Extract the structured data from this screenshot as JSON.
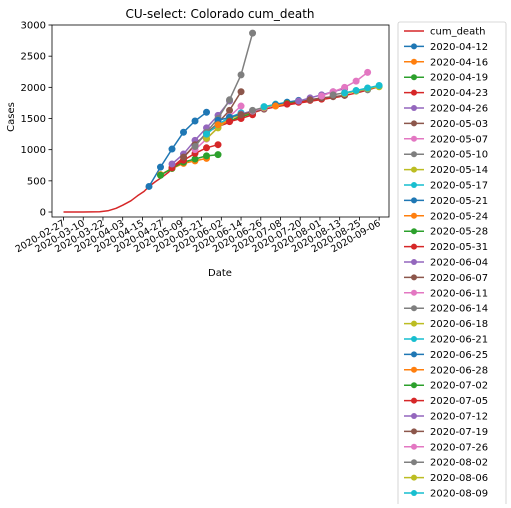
{
  "chart_data": {
    "type": "line",
    "title": "CU-select: Colorado cum_death",
    "xlabel": "Date",
    "ylabel": "Cases",
    "ylim": [
      -80,
      3000
    ],
    "yticks": [
      0,
      500,
      1000,
      1500,
      2000,
      2500,
      3000
    ],
    "x_dates": [
      "2020-02-27",
      "2020-03-10",
      "2020-03-22",
      "2020-04-03",
      "2020-04-15",
      "2020-04-27",
      "2020-05-09",
      "2020-05-21",
      "2020-06-02",
      "2020-06-14",
      "2020-06-26",
      "2020-07-08",
      "2020-07-20",
      "2020-08-01",
      "2020-08-13",
      "2020-08-25",
      "2020-09-06"
    ],
    "xlim": [
      "2020-02-20",
      "2020-09-12"
    ],
    "grid": false,
    "legend_placement": "outside-right",
    "colors": [
      "#d62728",
      "#1f77b4",
      "#ff7f0e",
      "#2ca02c",
      "#d62728",
      "#9467bd",
      "#8c564b",
      "#e377c2",
      "#7f7f7f",
      "#bcbd22",
      "#17becf"
    ],
    "series": [
      {
        "name": "cum_death",
        "color": "#d62728",
        "marker": false,
        "x": [
          "2020-02-27",
          "2020-03-10",
          "2020-03-15",
          "2020-03-20",
          "2020-03-25",
          "2020-03-30",
          "2020-04-03",
          "2020-04-08",
          "2020-04-12",
          "2020-04-16",
          "2020-04-19",
          "2020-04-23",
          "2020-04-27",
          "2020-05-01",
          "2020-05-05",
          "2020-05-09",
          "2020-05-13",
          "2020-05-17",
          "2020-05-21",
          "2020-05-25",
          "2020-05-30",
          "2020-06-05",
          "2020-06-12",
          "2020-06-20",
          "2020-06-28",
          "2020-07-08",
          "2020-07-20",
          "2020-08-01",
          "2020-08-13",
          "2020-08-25",
          "2020-09-06"
        ],
        "y": [
          0,
          0,
          2,
          5,
          20,
          60,
          110,
          180,
          260,
          330,
          410,
          490,
          560,
          640,
          760,
          850,
          960,
          1080,
          1180,
          1290,
          1360,
          1420,
          1520,
          1580,
          1650,
          1700,
          1750,
          1800,
          1850,
          1920,
          2010
        ]
      },
      {
        "name": "2020-04-12",
        "color": "#1f77b4",
        "x": [
          "2020-04-19",
          "2020-04-26",
          "2020-05-03",
          "2020-05-10",
          "2020-05-17",
          "2020-05-24"
        ],
        "y": [
          410,
          720,
          1010,
          1280,
          1460,
          1600
        ]
      },
      {
        "name": "2020-04-16",
        "color": "#ff7f0e",
        "x": [
          "2020-04-26",
          "2020-05-03",
          "2020-05-10",
          "2020-05-17",
          "2020-05-24"
        ],
        "y": [
          600,
          700,
          780,
          820,
          860
        ]
      },
      {
        "name": "2020-04-19",
        "color": "#2ca02c",
        "x": [
          "2020-04-26",
          "2020-05-03",
          "2020-05-10",
          "2020-05-17",
          "2020-05-24",
          "2020-05-31"
        ],
        "y": [
          590,
          700,
          800,
          850,
          900,
          920
        ]
      },
      {
        "name": "2020-04-23",
        "color": "#d62728",
        "x": [
          "2020-05-03",
          "2020-05-10",
          "2020-05-17",
          "2020-05-24",
          "2020-05-31"
        ],
        "y": [
          710,
          830,
          940,
          1030,
          1080
        ]
      },
      {
        "name": "2020-04-26",
        "color": "#9467bd",
        "x": [
          "2020-05-03",
          "2020-05-10",
          "2020-05-17",
          "2020-05-24",
          "2020-05-31",
          "2020-06-07"
        ],
        "y": [
          770,
          930,
          1150,
          1350,
          1550,
          1780
        ]
      },
      {
        "name": "2020-05-03",
        "color": "#8c564b",
        "x": [
          "2020-05-10",
          "2020-05-17",
          "2020-05-24",
          "2020-05-31",
          "2020-06-07",
          "2020-06-14"
        ],
        "y": [
          880,
          1080,
          1260,
          1430,
          1630,
          1930
        ]
      },
      {
        "name": "2020-05-07",
        "color": "#e377c2",
        "x": [
          "2020-05-17",
          "2020-05-24",
          "2020-05-31",
          "2020-06-07",
          "2020-06-14"
        ],
        "y": [
          1000,
          1170,
          1360,
          1530,
          1700
        ]
      },
      {
        "name": "2020-05-10",
        "color": "#7f7f7f",
        "x": [
          "2020-05-17",
          "2020-05-24",
          "2020-05-31",
          "2020-06-07",
          "2020-06-14",
          "2020-06-21"
        ],
        "y": [
          1050,
          1280,
          1500,
          1800,
          2200,
          2870
        ]
      },
      {
        "name": "2020-05-14",
        "color": "#bcbd22",
        "x": [
          "2020-05-24",
          "2020-05-31",
          "2020-06-07",
          "2020-06-14"
        ],
        "y": [
          1180,
          1350,
          1500,
          1560
        ]
      },
      {
        "name": "2020-05-17",
        "color": "#17becf",
        "x": [
          "2020-05-24",
          "2020-05-31",
          "2020-06-07",
          "2020-06-14"
        ],
        "y": [
          1250,
          1400,
          1520,
          1590
        ]
      },
      {
        "name": "2020-05-21",
        "color": "#1f77b4",
        "x": [
          "2020-05-31",
          "2020-06-07",
          "2020-06-14",
          "2020-06-21"
        ],
        "y": [
          1470,
          1520,
          1570,
          1620
        ]
      },
      {
        "name": "2020-05-24",
        "color": "#ff7f0e",
        "x": [
          "2020-05-31",
          "2020-06-07",
          "2020-06-14",
          "2020-06-21"
        ],
        "y": [
          1400,
          1460,
          1530,
          1590
        ]
      },
      {
        "name": "2020-05-28",
        "color": "#2ca02c",
        "x": [
          "2020-06-07",
          "2020-06-14",
          "2020-06-21"
        ],
        "y": [
          1460,
          1530,
          1580
        ]
      },
      {
        "name": "2020-05-31",
        "color": "#d62728",
        "x": [
          "2020-06-07",
          "2020-06-14",
          "2020-06-21"
        ],
        "y": [
          1450,
          1500,
          1560
        ]
      },
      {
        "name": "2020-06-04",
        "color": "#9467bd",
        "x": [
          "2020-06-14",
          "2020-06-21",
          "2020-06-28"
        ],
        "y": [
          1570,
          1620,
          1660
        ]
      },
      {
        "name": "2020-06-07",
        "color": "#8c564b",
        "x": [
          "2020-06-14",
          "2020-06-21",
          "2020-06-28"
        ],
        "y": [
          1560,
          1610,
          1650
        ]
      },
      {
        "name": "2020-06-11",
        "color": "#e377c2",
        "x": [
          "2020-06-21",
          "2020-06-28",
          "2020-07-05"
        ],
        "y": [
          1620,
          1670,
          1710
        ]
      },
      {
        "name": "2020-06-14",
        "color": "#7f7f7f",
        "x": [
          "2020-06-21",
          "2020-06-28",
          "2020-07-05"
        ],
        "y": [
          1630,
          1680,
          1720
        ]
      },
      {
        "name": "2020-06-18",
        "color": "#bcbd22",
        "x": [
          "2020-06-28",
          "2020-07-05",
          "2020-07-12"
        ],
        "y": [
          1680,
          1720,
          1750
        ]
      },
      {
        "name": "2020-06-21",
        "color": "#17becf",
        "x": [
          "2020-06-28",
          "2020-07-05",
          "2020-07-12"
        ],
        "y": [
          1690,
          1730,
          1760
        ]
      },
      {
        "name": "2020-06-25",
        "color": "#1f77b4",
        "x": [
          "2020-07-05",
          "2020-07-12",
          "2020-07-19"
        ],
        "y": [
          1720,
          1760,
          1790
        ]
      },
      {
        "name": "2020-06-28",
        "color": "#ff7f0e",
        "x": [
          "2020-07-05",
          "2020-07-12",
          "2020-07-19"
        ],
        "y": [
          1700,
          1740,
          1770
        ]
      },
      {
        "name": "2020-07-02",
        "color": "#2ca02c",
        "x": [
          "2020-07-12",
          "2020-07-19",
          "2020-07-26"
        ],
        "y": [
          1740,
          1770,
          1800
        ]
      },
      {
        "name": "2020-07-05",
        "color": "#d62728",
        "x": [
          "2020-07-12",
          "2020-07-19",
          "2020-07-26",
          "2020-08-02"
        ],
        "y": [
          1730,
          1760,
          1790,
          1810
        ]
      },
      {
        "name": "2020-07-12",
        "color": "#9467bd",
        "x": [
          "2020-07-19",
          "2020-07-26",
          "2020-08-02",
          "2020-08-09",
          "2020-08-16"
        ],
        "y": [
          1780,
          1830,
          1880,
          1930,
          1980
        ]
      },
      {
        "name": "2020-07-19",
        "color": "#8c564b",
        "x": [
          "2020-07-26",
          "2020-08-02",
          "2020-08-09",
          "2020-08-16"
        ],
        "y": [
          1800,
          1830,
          1850,
          1870
        ]
      },
      {
        "name": "2020-07-26",
        "color": "#e377c2",
        "x": [
          "2020-08-02",
          "2020-08-09",
          "2020-08-16",
          "2020-08-23",
          "2020-08-30"
        ],
        "y": [
          1860,
          1930,
          2000,
          2100,
          2240
        ]
      },
      {
        "name": "2020-08-02",
        "color": "#7f7f7f",
        "x": [
          "2020-08-09",
          "2020-08-16",
          "2020-08-23",
          "2020-08-30"
        ],
        "y": [
          1880,
          1910,
          1940,
          1960
        ]
      },
      {
        "name": "2020-08-06",
        "color": "#bcbd22",
        "x": [
          "2020-08-16",
          "2020-08-23",
          "2020-08-30",
          "2020-09-06"
        ],
        "y": [
          1900,
          1940,
          1980,
          2010
        ]
      },
      {
        "name": "2020-08-09",
        "color": "#17becf",
        "x": [
          "2020-08-16",
          "2020-08-23",
          "2020-08-30",
          "2020-09-06"
        ],
        "y": [
          1910,
          1950,
          1990,
          2030
        ]
      }
    ]
  }
}
